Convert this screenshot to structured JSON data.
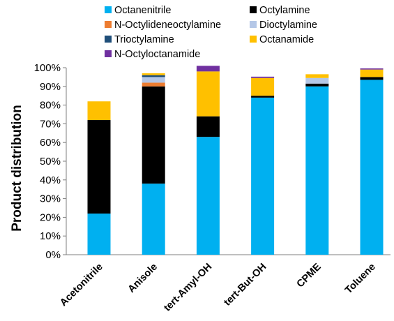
{
  "chart_data": {
    "type": "bar",
    "stacked": true,
    "title": "",
    "xlabel": "",
    "ylabel": "Product distribution",
    "ylim": [
      0,
      100
    ],
    "yticks": [
      "0%",
      "10%",
      "20%",
      "30%",
      "40%",
      "50%",
      "60%",
      "70%",
      "80%",
      "90%",
      "100%"
    ],
    "grid": false,
    "legend_position": "top",
    "categories": [
      "Acetonitrile",
      "Anisole",
      "tert-Amyl-OH",
      "tert-But-OH",
      "CPME",
      "Toluene"
    ],
    "series": [
      {
        "name": "Octanenitrile",
        "color": "#00b0f0",
        "values": [
          22,
          38,
          63,
          84,
          90,
          93.5
        ]
      },
      {
        "name": "Octylamine",
        "color": "#000000",
        "values": [
          50,
          52,
          11,
          1,
          1.5,
          1.5
        ]
      },
      {
        "name": "N-Octylideneoctylamine",
        "color": "#ed7d31",
        "values": [
          0,
          2,
          0,
          0,
          0,
          0
        ]
      },
      {
        "name": "Dioctylamine",
        "color": "#b4c7e7",
        "values": [
          0,
          3,
          0,
          0,
          3,
          0
        ]
      },
      {
        "name": "Trioctylamine",
        "color": "#1f4e79",
        "values": [
          0,
          1,
          0,
          0,
          0,
          0
        ]
      },
      {
        "name": "Octanamide",
        "color": "#ffc000",
        "values": [
          10,
          1,
          24,
          9.5,
          2,
          4
        ]
      },
      {
        "name": "N-Octyloctanamide",
        "color": "#7030a0",
        "values": [
          0,
          0,
          3,
          0.7,
          0,
          0.6
        ]
      }
    ]
  }
}
